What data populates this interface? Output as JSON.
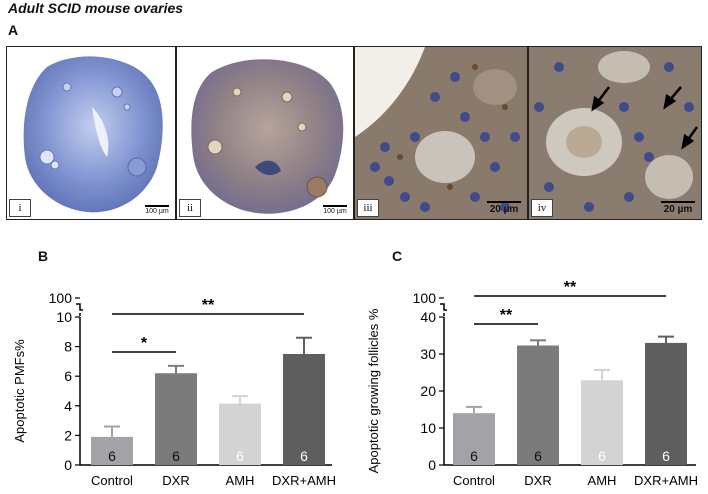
{
  "figure": {
    "title": "Adult SCID mouse ovaries",
    "panel_a_label": "A",
    "panel_b_label": "B",
    "panel_c_label": "C"
  },
  "micrographs": [
    {
      "label": "i",
      "scale": "100 µm"
    },
    {
      "label": "ii",
      "scale": "100 µm"
    },
    {
      "label": "iii",
      "scale": "20 µm"
    },
    {
      "label": "iv",
      "scale": "20 µm"
    }
  ],
  "colors": {
    "control": "#a3a2a7",
    "dxr": "#7b7b7b",
    "amh": "#d3d3d3",
    "dxr_amh": "#5e5e5e",
    "stain_blue": "#8da0d6",
    "stain_brown": "#a3805a"
  },
  "chart_data": [
    {
      "type": "bar",
      "title": "",
      "xlabel": "",
      "ylabel": "Apoptotic PMFs%",
      "categories": [
        "Control",
        "DXR",
        "AMH",
        "DXR+AMH"
      ],
      "values": [
        1.9,
        6.2,
        4.15,
        7.5
      ],
      "errors": [
        0.7,
        0.5,
        0.5,
        1.1
      ],
      "n_labels": [
        "6",
        "6",
        "6",
        "6"
      ],
      "ylim": [
        0,
        10
      ],
      "yticks": [
        0,
        2,
        4,
        6,
        8,
        10
      ],
      "axis_break_label": "100",
      "significance": [
        {
          "from": "Control",
          "to": "DXR",
          "label": "*"
        },
        {
          "from": "Control",
          "to": "DXR+AMH",
          "label": "**"
        }
      ]
    },
    {
      "type": "bar",
      "title": "",
      "xlabel": "",
      "ylabel": "Apoptotic growing follicles %",
      "categories": [
        "Control",
        "DXR",
        "AMH",
        "DXR+AMH"
      ],
      "values": [
        14,
        32.3,
        22.9,
        33
      ],
      "errors": [
        1.7,
        1.4,
        2.8,
        1.7
      ],
      "n_labels": [
        "6",
        "6",
        "6",
        "6"
      ],
      "ylim": [
        0,
        40
      ],
      "yticks": [
        0,
        10,
        20,
        30,
        40
      ],
      "axis_break_label": "100",
      "significance": [
        {
          "from": "Control",
          "to": "DXR",
          "label": "**"
        },
        {
          "from": "Control",
          "to": "DXR+AMH",
          "label": "**"
        }
      ]
    }
  ]
}
